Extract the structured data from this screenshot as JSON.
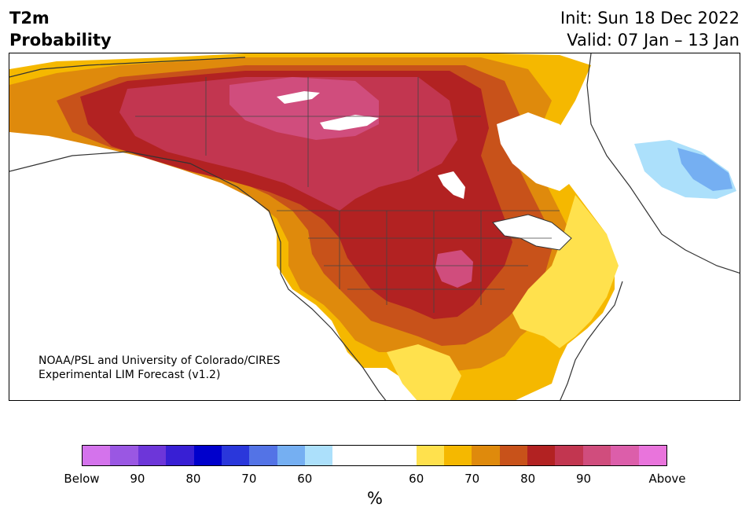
{
  "title": {
    "line1": "T2m",
    "line2": "Probability"
  },
  "header_right": {
    "init": "Init: Sun 18 Dec 2022",
    "valid": "Valid: 07 Jan – 13 Jan"
  },
  "credit": {
    "line1": "NOAA/PSL and University of Colorado/CIRES",
    "line2": "Experimental LIM Forecast (v1.2)"
  },
  "colorbar": {
    "unit": "%",
    "below_colors": [
      "#d473ec",
      "#9a57e3",
      "#6d36d9",
      "#381fd4",
      "#0000cc",
      "#2a37db",
      "#5373e6",
      "#75aff2",
      "#ace0fb"
    ],
    "neutral_color": "#ffffff",
    "above_colors": [
      "#ffe14d",
      "#f5b800",
      "#df8a0c",
      "#c8521a",
      "#b22222",
      "#c23650",
      "#d04d7d",
      "#dc5eaa",
      "#e974dc"
    ],
    "tick_labels": [
      "Below",
      "90",
      "80",
      "70",
      "60",
      "60",
      "70",
      "80",
      "90",
      "Above"
    ]
  }
}
